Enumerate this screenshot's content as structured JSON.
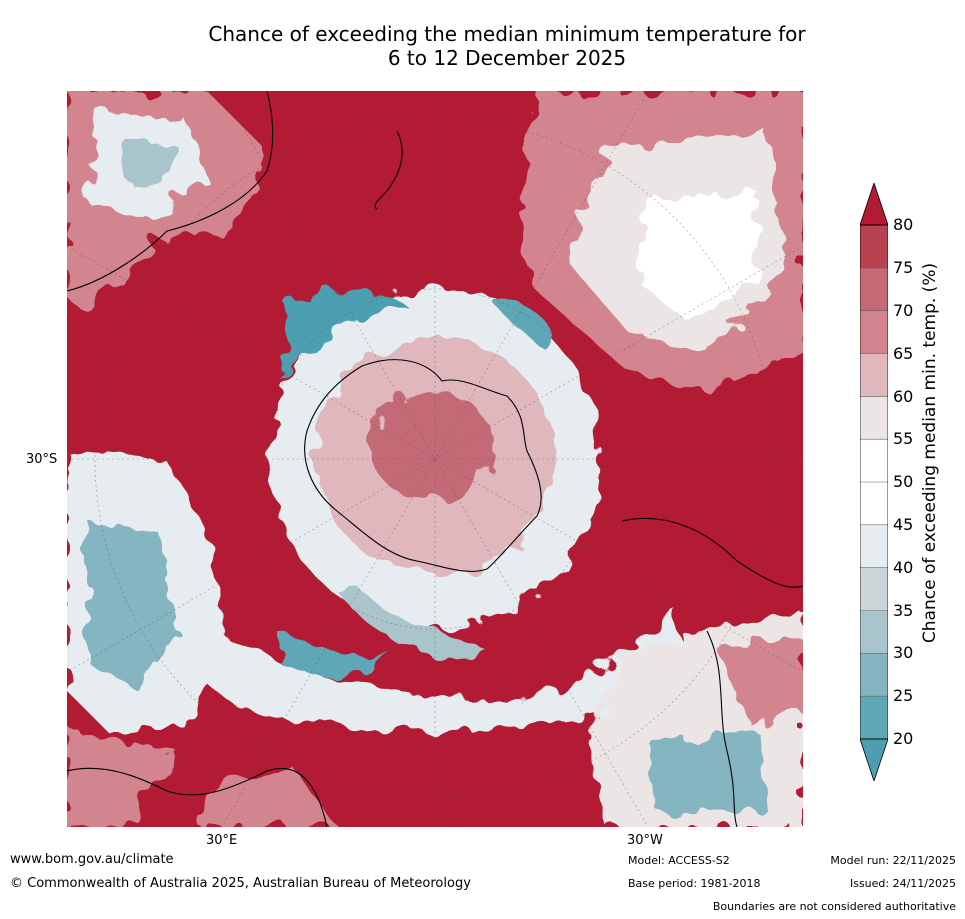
{
  "title": {
    "line1": "Chance of exceeding the median minimum temperature for",
    "line2": "6 to 12 December 2025"
  },
  "map": {
    "projection_center": "South Pole",
    "lat_label": "30°S",
    "lon_labels": [
      "30°E",
      "30°W"
    ]
  },
  "colorbar": {
    "label": "Chance of exceeding median min. temp. (%)",
    "ticks": [
      "20",
      "25",
      "30",
      "35",
      "40",
      "45",
      "50",
      "55",
      "60",
      "65",
      "70",
      "75",
      "80"
    ],
    "levels": [
      20,
      25,
      30,
      35,
      40,
      45,
      50,
      55,
      60,
      65,
      70,
      75,
      80
    ],
    "colors": [
      "#5ea7b6",
      "#85b5c1",
      "#a9c4ca",
      "#cbd5d8",
      "#e6ecef",
      "#ffffff",
      "#ffffff",
      "#ebe5e6",
      "#e0b7bd",
      "#d2848f",
      "#c46a77",
      "#b8424f"
    ],
    "under_color": "#4c9fb1",
    "over_color": "#b31b34"
  },
  "footer": {
    "website": "www.bom.gov.au/climate",
    "copyright": "© Commonwealth of Australia 2025, Australian Bureau of Meteorology",
    "model": "Model: ACCESS-S2",
    "base_period": "Base period: 1981-2018",
    "model_run": "Model run: 22/11/2025",
    "issued": "Issued: 24/11/2025",
    "disclaimer": "Boundaries are not considered authoritative"
  },
  "colors": {
    "very_high": "#b31b34",
    "high": "#d2848f",
    "neutral": "#ffffff",
    "low": "#cbd5d8",
    "very_low": "#4c9fb1"
  }
}
